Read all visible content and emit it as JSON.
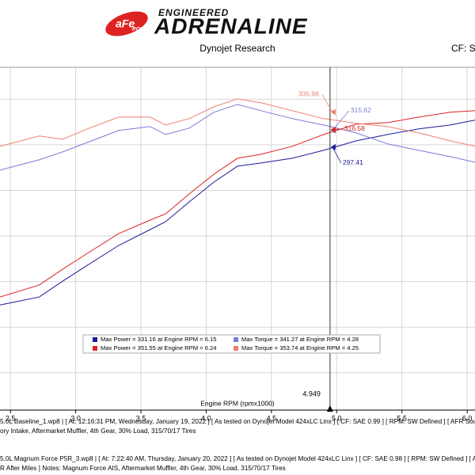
{
  "header": {
    "logo_mark": "aFe",
    "logo_sub": "POWER",
    "tagline": "ENGINEERED",
    "brand": "ADRENALINE"
  },
  "footer": [
    "5.0L Baseline_1.wp8 | [ At: 12:16:31 PM, Wednesday, January 19, 2022 ] [ As tested on Dynojet Model 424xLC Linx ] [ CF: SAE 0.99 ] [ RPM: SW Defined ] [ AFR Source: Dynoware",
    "ory Intake, Aftermarket Muffler, 4th Gear, 30% Load, 315/70/17 Tires",
    "5.0L Magnum Force P5R_3.wp8 | [ At: 7:22:40 AM, Thursday, January 20, 2022 ] [ As tested on Dynojet Model 424xLC Linx ] [ CF: SAE 0.98 ] [ RPM: SW Defined ] [ AFR Source: Dy",
    "R After Miles ]  Notes: Magnum Force AIS, Aftermarket Muffler, 4th Gear, 30% Load, 315/70/17 Tires"
  ],
  "chart_data": {
    "type": "line",
    "title": "Dynojet Research",
    "subtitle": "CF: SA",
    "x_label": "Engine RPM (rpmx1000)",
    "x": [
      2.42,
      2.72,
      2.9,
      3.09,
      3.33,
      3.57,
      3.69,
      3.87,
      4.06,
      4.24,
      4.42,
      4.66,
      4.9,
      5.15,
      5.39,
      5.63,
      5.87,
      6.06
    ],
    "xlim": [
      2.42,
      6.06
    ],
    "xticks": [
      2.5,
      {
        "value": 3,
        "label": "3.0"
      },
      3.5,
      {
        "value": 4,
        "label": "4.0"
      },
      4.5,
      {
        "value": 5,
        "label": "5.0"
      },
      5.5,
      {
        "value": 6,
        "label": "6.0"
      }
    ],
    "ylim": [
      9,
      385
    ],
    "yticks": [
      50,
      100,
      150,
      200,
      250,
      300,
      350
    ],
    "grid": true,
    "cursor": 4.949,
    "series": [
      {
        "name": "Max Power = 331.16 at Engine RPM = 6.15",
        "color": "#1a1a9a",
        "cursor_value": 297.41,
        "values": [
          124.3,
          133,
          150.4,
          167.8,
          189.6,
          207,
          215.7,
          237.4,
          259.1,
          276.5,
          280,
          285.2,
          293.9,
          304.3,
          311.3,
          317.4,
          321.7,
          327
        ]
      },
      {
        "name": "Max Torque = 341.27 at Engine RPM = 4.28",
        "color": "#7a7ad8",
        "cursor_value": 315.62,
        "values": [
          272.2,
          283.5,
          292.2,
          302.6,
          315.7,
          320,
          311.3,
          318.3,
          335.7,
          344.3,
          337.4,
          328.7,
          321.7,
          313,
          300.9,
          293.9,
          287,
          280.9
        ]
      },
      {
        "name": "Max Power = 351.55 at Engine RPM = 6.24",
        "color": "#dd2222",
        "cursor_value": 316.58,
        "values": [
          133,
          146.1,
          163.5,
          180.9,
          202.6,
          217.4,
          224.3,
          246.1,
          267.8,
          285.2,
          289.6,
          298.3,
          311.3,
          322.6,
          324.3,
          330.4,
          335.7,
          337.4
        ]
      },
      {
        "name": "Max Torque = 353.74 at Engine RPM = 4.25",
        "color": "#ee8070",
        "cursor_value": 335.96,
        "values": [
          298.3,
          309.6,
          306.1,
          317.4,
          330.4,
          330.4,
          321.7,
          328.7,
          341.7,
          350.4,
          346.1,
          337.4,
          328.7,
          323.5,
          320,
          313,
          304.3,
          298.3
        ]
      }
    ]
  }
}
